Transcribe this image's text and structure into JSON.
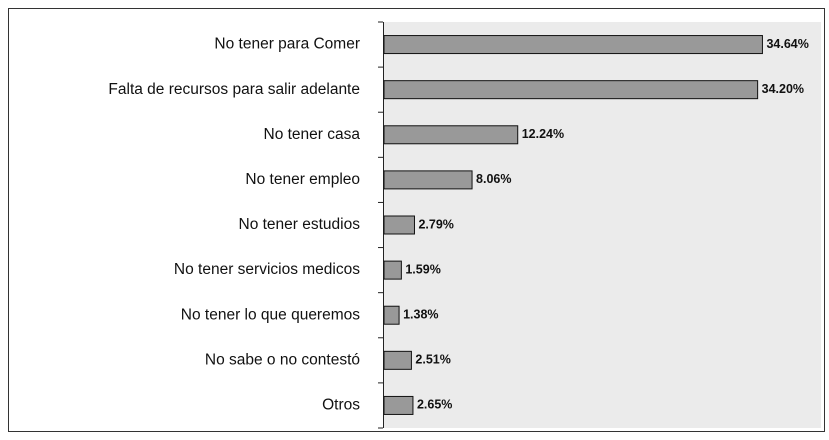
{
  "chart_data": {
    "type": "bar",
    "orientation": "horizontal",
    "categories": [
      "No tener para Comer",
      "Falta de recursos para salir adelante",
      "No tener casa",
      "No tener empleo",
      "No tener estudios",
      "No tener servicios medicos",
      "No tener lo que queremos",
      "No sabe o no contestó",
      "Otros"
    ],
    "values": [
      34.64,
      34.2,
      12.24,
      8.06,
      2.79,
      1.59,
      1.38,
      2.51,
      2.65
    ],
    "value_labels": [
      "34.64%",
      "34.20%",
      "12.24%",
      "8.06%",
      "2.79%",
      "1.59%",
      "1.38%",
      "2.51%",
      "2.65%"
    ],
    "color": "#999999",
    "plot_background": "#ebebeb",
    "xlim": [
      0,
      40
    ]
  }
}
